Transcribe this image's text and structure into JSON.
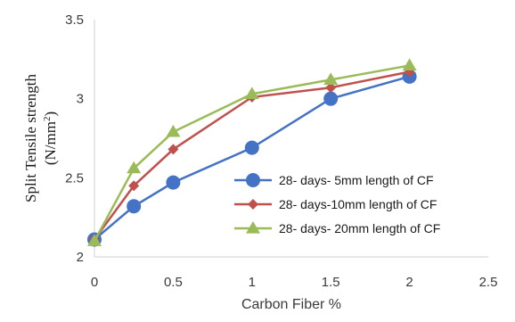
{
  "chart_data": {
    "type": "line",
    "title": "",
    "xlabel": "Carbon Fiber %",
    "ylabel_line1": "Split Tensile strength",
    "ylabel_line2_prefix": "(N/mm",
    "ylabel_line2_sup": "2",
    "ylabel_line2_suffix": ")",
    "xlim": [
      0,
      2.5
    ],
    "ylim": [
      2,
      3.5
    ],
    "xticks": [
      "0",
      "0.5",
      "1",
      "1.5",
      "2",
      "2.5"
    ],
    "yticks": [
      "2",
      "2.5",
      "3",
      "3.5"
    ],
    "grid": false,
    "legend_position": "right",
    "x": [
      0,
      0.25,
      0.5,
      1,
      1.5,
      2
    ],
    "series": [
      {
        "name": "28- days- 5mm length of CF",
        "values": [
          2.11,
          2.32,
          2.47,
          2.69,
          3.0,
          3.14
        ],
        "color": "#4472C4",
        "marker": "circle"
      },
      {
        "name": "28- days-10mm length of CF",
        "values": [
          2.11,
          2.45,
          2.68,
          3.01,
          3.07,
          3.17
        ],
        "color": "#C0504D",
        "marker": "diamond"
      },
      {
        "name": "28- days- 20mm length of CF",
        "values": [
          2.1,
          2.56,
          2.79,
          3.03,
          3.12,
          3.21
        ],
        "color": "#9BBB59",
        "marker": "triangle"
      }
    ]
  }
}
